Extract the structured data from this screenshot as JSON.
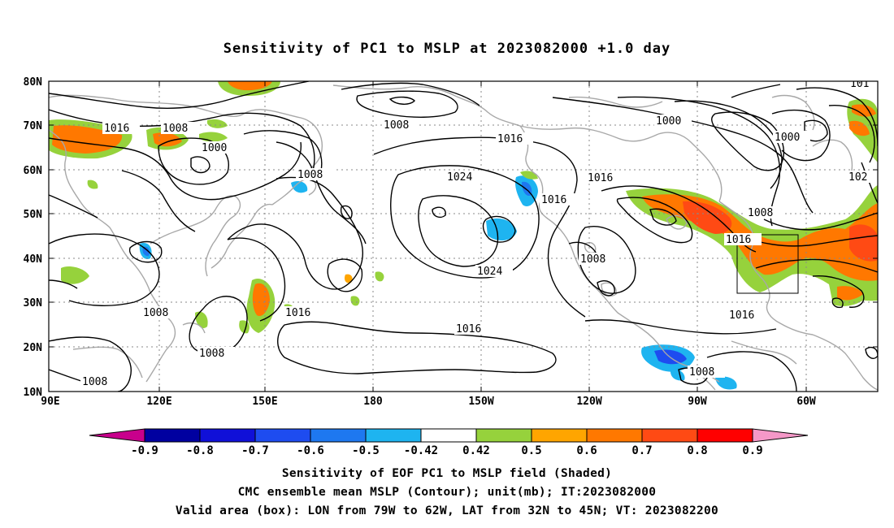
{
  "title": "Sensitivity of PC1 to MSLP at 2023082000 +1.0 day",
  "map": {
    "lat_labels": [
      "80N",
      "70N",
      "60N",
      "50N",
      "40N",
      "30N",
      "20N",
      "10N"
    ],
    "lon_labels": [
      "90E",
      "120E",
      "150E",
      "180",
      "150W",
      "120W",
      "90W",
      "60W"
    ],
    "contour_labels": [
      {
        "text": "1016",
        "id": "c1016-a"
      },
      {
        "text": "1008",
        "id": "c1008-a"
      },
      {
        "text": "1000",
        "id": "c1000-a"
      },
      {
        "text": "1008",
        "id": "c1008-b"
      },
      {
        "text": "1008",
        "id": "c1008-c"
      },
      {
        "text": "1016",
        "id": "c1016-b"
      },
      {
        "text": "1024",
        "id": "c1024-a"
      },
      {
        "text": "1016",
        "id": "c1016-c"
      },
      {
        "text": "1016",
        "id": "c1016-d"
      },
      {
        "text": "1000",
        "id": "c1000-b"
      },
      {
        "text": "1000",
        "id": "c1000-c"
      },
      {
        "text": "1008",
        "id": "c1008-d"
      },
      {
        "text": "1016",
        "id": "c1016-e"
      },
      {
        "text": "1024",
        "id": "c1024-b"
      },
      {
        "text": "1008",
        "id": "c1008-e"
      },
      {
        "text": "1016",
        "id": "c1016-f"
      },
      {
        "text": "1016",
        "id": "c1016-g"
      },
      {
        "text": "1008",
        "id": "c1008-f"
      },
      {
        "text": "1008",
        "id": "c1008-g"
      },
      {
        "text": "1008",
        "id": "c1008-h"
      },
      {
        "text": "1016",
        "id": "c1016-h"
      },
      {
        "text": "102",
        "id": "c102-edge"
      },
      {
        "text": "101",
        "id": "c101-edge"
      }
    ],
    "valid_box": {
      "lon_w": -79,
      "lon_e": -62,
      "lat_s": 32,
      "lat_n": 45
    }
  },
  "colorbar": {
    "labels": [
      "-0.9",
      "-0.8",
      "-0.7",
      "-0.6",
      "-0.5",
      "-0.42",
      "0.42",
      "0.5",
      "0.6",
      "0.7",
      "0.8",
      "0.9"
    ],
    "colors": [
      "#0000a0",
      "#1010d8",
      "#1e4cf0",
      "#1e78f0",
      "#1eb4f0",
      "#ffffff",
      "#96d23c",
      "#ffa500",
      "#ff7800",
      "#ff4a14",
      "#ff0000"
    ],
    "low_end_color": "#c8008c",
    "high_end_color": "#f598c8"
  },
  "footer": {
    "line1": "Sensitivity of EOF PC1 to MSLP field (Shaded)",
    "line2": "CMC ensemble mean MSLP (Contour); unit(mb); IT:2023082000",
    "line3": "Valid area (box): LON from 79W to 62W, LAT from 32N to 45N; VT: 2023082200"
  }
}
